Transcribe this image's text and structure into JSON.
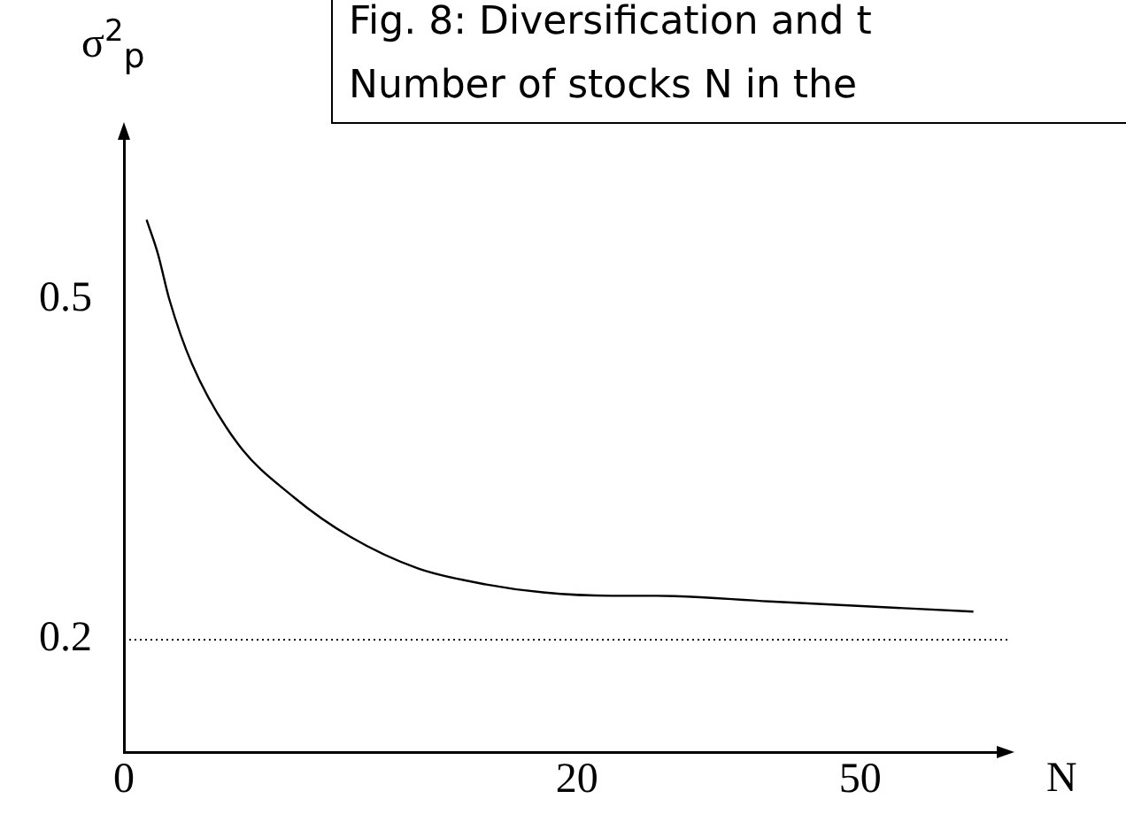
{
  "chart_data": {
    "type": "line",
    "title": "Fig. 8: Diversification and t\nNumber of stocks N in the",
    "xlabel": "N",
    "ylabel": "σ$^{2}$$_{p}$",
    "categories": [
      "0",
      null,
      null,
      null,
      null,
      null,
      null,
      null,
      null,
      null,
      null,
      null,
      null,
      null,
      null,
      null,
      null,
      null,
      null,
      null,
      null,
      null,
      null,
      null,
      null,
      null,
      null,
      null,
      null,
      null,
      null,
      null,
      null,
      null,
      null,
      null,
      null,
      null,
      null,
      null,
      "20",
      null,
      null,
      null,
      null,
      null,
      null,
      null,
      null,
      null,
      null,
      null,
      null,
      null,
      null,
      null,
      null,
      null,
      null,
      null,
      null,
      null,
      null,
      null,
      null,
      "50",
      null,
      null,
      null,
      null,
      null,
      null,
      null,
      null,
      null,
      null,
      null,
      null,
      null
    ],
    "series": [
      {
        "color": "#000000",
        "values": [
          null,
          null,
          0.57,
          0.54,
          0.5,
          null,
          0.443,
          null,
          null,
          null,
          0.373,
          null,
          null,
          null,
          null,
          0.325,
          null,
          null,
          null,
          null,
          0.29,
          null,
          null,
          null,
          null,
          null,
          0.262,
          null,
          null,
          null,
          null,
          null,
          0.248,
          null,
          null,
          null,
          null,
          0.241,
          null,
          null,
          null,
          null,
          null,
          0.238,
          null,
          null,
          null,
          0.238,
          null,
          null,
          null,
          null,
          null,
          null,
          null,
          null,
          null,
          0.233,
          null,
          null,
          null,
          null,
          null,
          null,
          null,
          null,
          null,
          null,
          null,
          null,
          null,
          null,
          null,
          null,
          null,
          0.224,
          null,
          null,
          null
        ]
      }
    ],
    "ylim": [
      0.1,
      0.65
    ],
    "yticks": [
      0.2,
      0.5
    ],
    "ref_lines": [
      {
        "axis": "y",
        "value": 0.2,
        "color": "#000000",
        "line_style": "dotted"
      }
    ],
    "grid": false,
    "legend": false,
    "marker": "none",
    "line_style": "solid"
  }
}
